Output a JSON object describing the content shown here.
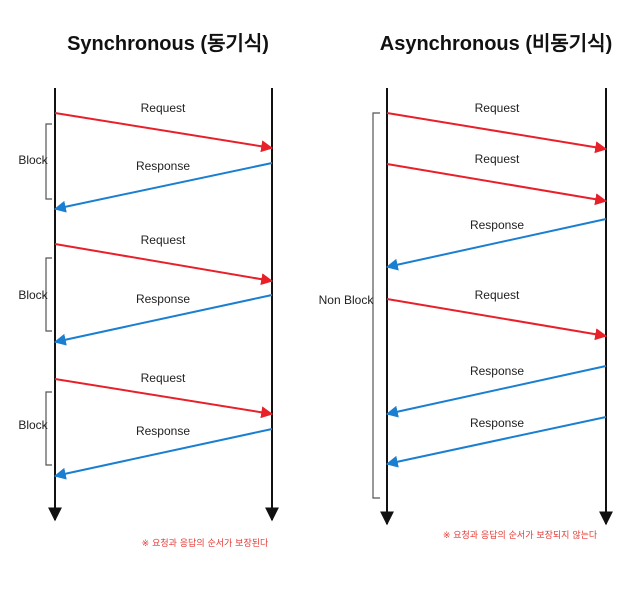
{
  "diagrams": {
    "left": {
      "title": "Synchronous (동기식)",
      "messages": [
        {
          "label": "Request",
          "direction": "right",
          "color": "#e8202a"
        },
        {
          "label": "Response",
          "direction": "left",
          "color": "#1a7fd0"
        },
        {
          "label": "Request",
          "direction": "right",
          "color": "#e8202a"
        },
        {
          "label": "Response",
          "direction": "left",
          "color": "#1a7fd0"
        },
        {
          "label": "Request",
          "direction": "right",
          "color": "#e8202a"
        },
        {
          "label": "Response",
          "direction": "left",
          "color": "#1a7fd0"
        }
      ],
      "blocks": [
        "Block",
        "Block",
        "Block"
      ],
      "note": "※ 요청과 응답의 순서가 보장된다"
    },
    "right": {
      "title": "Asynchronous (비동기식)",
      "messages": [
        {
          "label": "Request",
          "direction": "right",
          "color": "#e8202a"
        },
        {
          "label": "Request",
          "direction": "right",
          "color": "#e8202a"
        },
        {
          "label": "Response",
          "direction": "left",
          "color": "#1a7fd0"
        },
        {
          "label": "Request",
          "direction": "right",
          "color": "#e8202a"
        },
        {
          "label": "Response",
          "direction": "left",
          "color": "#1a7fd0"
        },
        {
          "label": "Response",
          "direction": "left",
          "color": "#1a7fd0"
        }
      ],
      "blocks": [
        "Non Block"
      ],
      "note": "※ 요청과 응답의 순서가 보장되지 않는다"
    }
  }
}
